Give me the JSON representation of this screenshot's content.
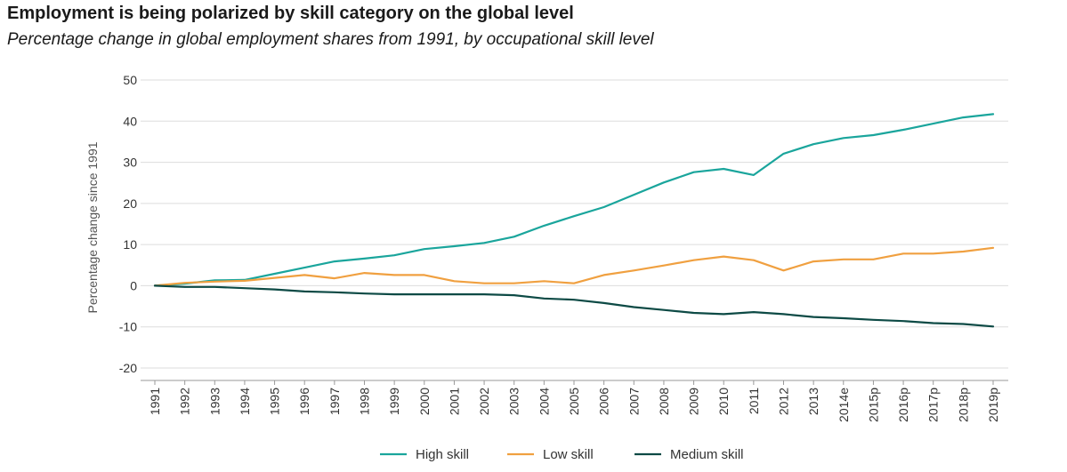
{
  "header": {
    "title": "Employment is being polarized by skill category on the global level",
    "subtitle": "Percentage change in global employment shares from 1991, by occupational skill level"
  },
  "chart_data": {
    "type": "line",
    "title": "Employment is being polarized by skill category on the global level",
    "subtitle": "Percentage change in global employment shares from 1991, by occupational skill level",
    "xlabel": "",
    "ylabel": "Percentage change since 1991",
    "ylim": [
      -20,
      50
    ],
    "yticks": [
      50,
      40,
      30,
      20,
      10,
      0,
      -10,
      -20
    ],
    "grid": true,
    "legend_position": "bottom-center",
    "categories": [
      "1991",
      "1992",
      "1993",
      "1994",
      "1995",
      "1996",
      "1997",
      "1998",
      "1999",
      "2000",
      "2001",
      "2002",
      "2003",
      "2004",
      "2005",
      "2006",
      "2007",
      "2008",
      "2009",
      "2010",
      "2011",
      "2012",
      "2013",
      "2014e",
      "2015p",
      "2016p",
      "2017p",
      "2018p",
      "2019p"
    ],
    "series": [
      {
        "name": "High skill",
        "color": "#1aa59c",
        "values": [
          0,
          0.5,
          1.3,
          1.4,
          2.9,
          4.4,
          5.9,
          6.6,
          7.4,
          8.9,
          9.6,
          10.4,
          11.9,
          14.6,
          16.9,
          19.1,
          22.1,
          25.1,
          27.6,
          28.4,
          26.9,
          32.1,
          34.4,
          35.9,
          36.6,
          37.9,
          39.4,
          40.9,
          41.7
        ]
      },
      {
        "name": "Low skill",
        "color": "#f0a040",
        "values": [
          0,
          0.7,
          1.0,
          1.2,
          1.9,
          2.6,
          1.8,
          3.1,
          2.6,
          2.6,
          1.1,
          0.6,
          0.6,
          1.1,
          0.6,
          2.6,
          3.7,
          4.9,
          6.2,
          7.1,
          6.2,
          3.7,
          5.9,
          6.4,
          6.4,
          7.8,
          7.8,
          8.3,
          9.2
        ]
      },
      {
        "name": "Medium skill",
        "color": "#0d4a45",
        "values": [
          0,
          -0.3,
          -0.3,
          -0.6,
          -0.9,
          -1.4,
          -1.6,
          -1.9,
          -2.1,
          -2.1,
          -2.1,
          -2.1,
          -2.3,
          -3.1,
          -3.4,
          -4.2,
          -5.2,
          -5.9,
          -6.6,
          -6.9,
          -6.4,
          -6.9,
          -7.6,
          -7.9,
          -8.3,
          -8.6,
          -9.1,
          -9.3,
          -9.9
        ]
      }
    ]
  }
}
